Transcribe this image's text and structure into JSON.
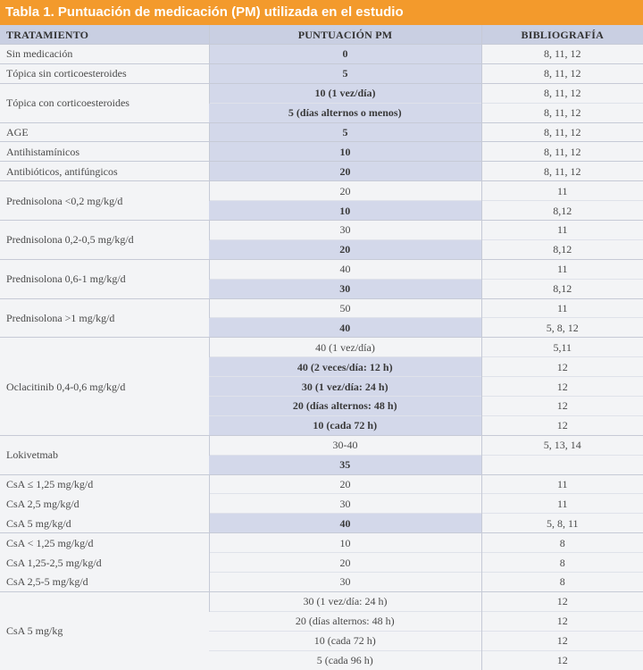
{
  "title": "Tabla 1. Puntuación de medicación (PM) utilizada en el estudio",
  "headers": [
    "TRATAMIENTO",
    "PUNTUACIÓN PM",
    "BIBLIOGRAFÍA"
  ],
  "groups": [
    {
      "treatment": "Sin medicación",
      "rows": [
        {
          "score": "0",
          "ref": "8, 11, 12",
          "bold": true
        }
      ]
    },
    {
      "treatment": "Tópica sin corticoesteroides",
      "rows": [
        {
          "score": "5",
          "ref": "8, 11, 12",
          "bold": true
        }
      ]
    },
    {
      "treatment": "Tópica con corticoesteroides",
      "rows": [
        {
          "score": "10 (1 vez/día)",
          "ref": "8, 11, 12",
          "bold": true
        },
        {
          "score": "5 (días alternos o menos)",
          "ref": "8, 11, 12",
          "bold": true
        }
      ]
    },
    {
      "treatment": "AGE",
      "rows": [
        {
          "score": "5",
          "ref": "8, 11, 12",
          "bold": true
        }
      ]
    },
    {
      "treatment": "Antihistamínicos",
      "rows": [
        {
          "score": "10",
          "ref": "8, 11, 12",
          "bold": true
        }
      ]
    },
    {
      "treatment": "Antibióticos, antifúngicos",
      "rows": [
        {
          "score": "20",
          "ref": "8, 11, 12",
          "bold": true
        }
      ]
    },
    {
      "treatment": "Prednisolona <0,2 mg/kg/d",
      "rows": [
        {
          "score": "20",
          "ref": "11",
          "bold": false
        },
        {
          "score": "10",
          "ref": "8,12",
          "bold": true
        }
      ]
    },
    {
      "treatment": "Prednisolona 0,2-0,5 mg/kg/d",
      "rows": [
        {
          "score": "30",
          "ref": "11",
          "bold": false
        },
        {
          "score": "20",
          "ref": "8,12",
          "bold": true
        }
      ]
    },
    {
      "treatment": "Prednisolona 0,6-1 mg/kg/d",
      "rows": [
        {
          "score": "40",
          "ref": "11",
          "bold": false
        },
        {
          "score": "30",
          "ref": "8,12",
          "bold": true
        }
      ]
    },
    {
      "treatment": "Prednisolona >1 mg/kg/d",
      "rows": [
        {
          "score": "50",
          "ref": "11",
          "bold": false
        },
        {
          "score": "40",
          "ref": "5, 8, 12",
          "bold": true
        }
      ]
    },
    {
      "treatment": "Oclacitinib 0,4-0,6 mg/kg/d",
      "rows": [
        {
          "score": "40 (1 vez/día)",
          "ref": "5,11",
          "bold": false
        },
        {
          "score": "40 (2 veces/día: 12 h)",
          "ref": "12",
          "bold": true
        },
        {
          "score": "30 (1 vez/día: 24 h)",
          "ref": "12",
          "bold": true
        },
        {
          "score": "20 (días alternos: 48 h)",
          "ref": "12",
          "bold": true
        },
        {
          "score": "10 (cada 72 h)",
          "ref": "12",
          "bold": true
        }
      ]
    },
    {
      "treatment": "Lokivetmab",
      "rows": [
        {
          "score": "30-40",
          "ref": "5, 13, 14",
          "bold": false
        },
        {
          "score": "35",
          "ref": "",
          "bold": true
        }
      ]
    },
    {
      "treatment": "CsA ≤ 1,25 mg/kg/d",
      "rows": [
        {
          "score": "20",
          "ref": "11",
          "bold": false
        }
      ]
    },
    {
      "treatment": "CsA 2,5 mg/kg/d",
      "sub": true,
      "rows": [
        {
          "score": "30",
          "ref": "11",
          "bold": false
        }
      ]
    },
    {
      "treatment": "CsA 5 mg/kg/d",
      "sub": true,
      "rows": [
        {
          "score": "40",
          "ref": "5, 8, 11",
          "bold": true
        }
      ]
    },
    {
      "treatment": "CsA < 1,25 mg/kg/d",
      "rows": [
        {
          "score": "10",
          "ref": "8",
          "bold": false
        }
      ]
    },
    {
      "treatment": "CsA 1,25-2,5 mg/kg/d",
      "sub": true,
      "rows": [
        {
          "score": "20",
          "ref": "8",
          "bold": false
        }
      ]
    },
    {
      "treatment": "CsA 2,5-5 mg/kg/d",
      "sub": true,
      "rows": [
        {
          "score": "30",
          "ref": "8",
          "bold": false
        }
      ]
    },
    {
      "treatment": "CsA 5 mg/kg",
      "rows": [
        {
          "score": "30 (1 vez/día: 24 h)",
          "ref": "12",
          "bold": false
        },
        {
          "score": "20 (días alternos: 48 h)",
          "ref": "12",
          "bold": false
        },
        {
          "score": "10 (cada 72 h)",
          "ref": "12",
          "bold": false
        },
        {
          "score": "5 (cada 96 h)",
          "ref": "12",
          "bold": false
        }
      ]
    }
  ]
}
